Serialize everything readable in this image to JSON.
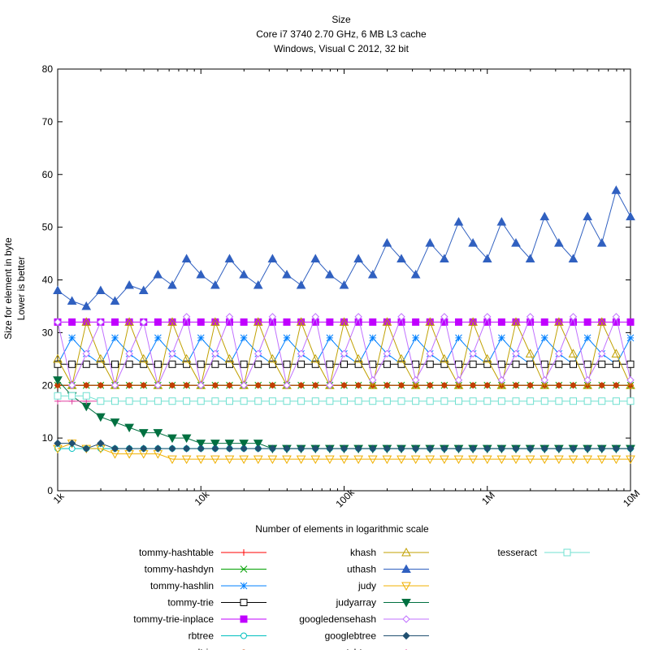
{
  "chart_data": {
    "type": "line",
    "title_lines": [
      "Size",
      "Core i7 3740 2.70 GHz, 6 MB L3 cache",
      "Windows, Visual C 2012, 32 bit"
    ],
    "xlabel": "Number of elements in logarithmic scale",
    "ylabel_lines": [
      "Size for element in byte",
      "Lower is better"
    ],
    "x_scale": "log",
    "xlim": [
      1000,
      10000000
    ],
    "ylim": [
      0,
      80
    ],
    "x_ticks": [
      {
        "value": 1000,
        "label": "1k"
      },
      {
        "value": 10000,
        "label": "10k"
      },
      {
        "value": 100000,
        "label": "100k"
      },
      {
        "value": 1000000,
        "label": "1M"
      },
      {
        "value": 10000000,
        "label": "10M"
      }
    ],
    "y_ticks": [
      0,
      10,
      20,
      30,
      40,
      50,
      60,
      70,
      80
    ],
    "grid": false,
    "legend_placement": "bottom",
    "x": [
      1000,
      1259,
      1585,
      1995,
      2512,
      3162,
      3981,
      5012,
      6310,
      7943,
      10000,
      12589,
      15849,
      19953,
      25119,
      31623,
      39811,
      50119,
      63096,
      79433,
      100000,
      125893,
      158489,
      199526,
      251189,
      316228,
      398107,
      501187,
      630957,
      794328,
      1000000,
      1258925,
      1584893,
      1995262,
      2511886,
      3162278,
      3981072,
      5011872,
      6309573,
      7943282,
      10000000
    ],
    "series": [
      {
        "name": "tommy-hashtable",
        "color": "#ff0000",
        "marker": "plus",
        "values": [
          20,
          20,
          20,
          20,
          20,
          20,
          20,
          20,
          20,
          20,
          20,
          20,
          20,
          20,
          20,
          20,
          20,
          20,
          20,
          20,
          20,
          20,
          20,
          20,
          20,
          20,
          20,
          20,
          20,
          20,
          20,
          20,
          20,
          20,
          20,
          20,
          20,
          20,
          20,
          20,
          20
        ]
      },
      {
        "name": "tommy-hashdyn",
        "color": "#00a000",
        "marker": "cross",
        "values": [
          20,
          20,
          20,
          20,
          20,
          20,
          20,
          20,
          20,
          20,
          20,
          20,
          20,
          20,
          20,
          20,
          20,
          20,
          20,
          20,
          20,
          20,
          20,
          20,
          20,
          20,
          20,
          20,
          20,
          20,
          20,
          20,
          20,
          20,
          20,
          20,
          20,
          20,
          20,
          20,
          20
        ]
      },
      {
        "name": "tommy-hashlin",
        "color": "#0080ff",
        "marker": "star",
        "values": [
          24,
          29,
          26,
          24,
          29,
          26,
          24,
          29,
          26,
          24,
          29,
          26,
          24,
          29,
          26,
          24,
          29,
          26,
          24,
          29,
          26,
          24,
          29,
          26,
          24,
          29,
          26,
          24,
          29,
          26,
          24,
          29,
          26,
          24,
          29,
          26,
          24,
          29,
          26,
          24,
          29
        ]
      },
      {
        "name": "tommy-trie",
        "color": "#000000",
        "marker": "square-open",
        "values": [
          24,
          24,
          24,
          24,
          24,
          24,
          24,
          24,
          24,
          24,
          24,
          24,
          24,
          24,
          24,
          24,
          24,
          24,
          24,
          24,
          24,
          24,
          24,
          24,
          24,
          24,
          24,
          24,
          24,
          24,
          24,
          24,
          24,
          24,
          24,
          24,
          24,
          24,
          24,
          24,
          24
        ]
      },
      {
        "name": "tommy-trie-inplace",
        "color": "#c000ff",
        "marker": "square-filled",
        "values": [
          32,
          32,
          32,
          32,
          32,
          32,
          32,
          32,
          32,
          32,
          32,
          32,
          32,
          32,
          32,
          32,
          32,
          32,
          32,
          32,
          32,
          32,
          32,
          32,
          32,
          32,
          32,
          32,
          32,
          32,
          32,
          32,
          32,
          32,
          32,
          32,
          32,
          32,
          32,
          32,
          32
        ]
      },
      {
        "name": "rbtree",
        "color": "#00c0c0",
        "marker": "circle-open",
        "values": [
          8,
          8,
          8,
          8,
          8,
          8,
          8,
          8,
          8,
          8,
          8,
          8,
          8,
          8,
          8,
          8,
          8,
          8,
          8,
          8,
          8,
          8,
          8,
          8,
          8,
          8,
          8,
          8,
          8,
          8,
          8,
          8,
          8,
          8,
          8,
          8,
          8,
          8,
          8,
          8,
          8
        ]
      },
      {
        "name": "nedtrie",
        "color": "#c04000",
        "marker": "star-filled",
        "values": [
          20,
          20,
          20,
          20,
          20,
          20,
          20,
          20,
          20,
          20,
          20,
          20,
          20,
          20,
          20,
          20,
          20,
          20,
          20,
          20,
          20,
          20,
          20,
          20,
          20,
          20,
          20,
          20,
          20,
          20,
          20,
          20,
          20,
          20,
          20,
          20,
          20,
          20,
          20,
          20,
          20
        ]
      },
      {
        "name": "khash",
        "color": "#c0a000",
        "marker": "triangle-up-open",
        "values": [
          25,
          20,
          32,
          25,
          20,
          32,
          25,
          20,
          32,
          25,
          20,
          32,
          25,
          20,
          32,
          25,
          20,
          32,
          25,
          20,
          32,
          25,
          20,
          32,
          25,
          20,
          32,
          25,
          20,
          32,
          25,
          20,
          32,
          26,
          20,
          32,
          26,
          20,
          32,
          26,
          20
        ]
      },
      {
        "name": "uthash",
        "color": "#3060c0",
        "marker": "triangle-up-filled",
        "values": [
          38,
          36,
          35,
          38,
          36,
          39,
          38,
          41,
          39,
          44,
          41,
          39,
          44,
          41,
          39,
          44,
          41,
          39,
          44,
          41,
          39,
          44,
          41,
          47,
          44,
          41,
          47,
          44,
          51,
          47,
          44,
          51,
          47,
          44,
          52,
          47,
          44,
          52,
          47,
          57,
          52
        ]
      },
      {
        "name": "judy",
        "color": "#f0b000",
        "marker": "triangle-down-open",
        "values": [
          8,
          9,
          8,
          8,
          7,
          7,
          7,
          7,
          6,
          6,
          6,
          6,
          6,
          6,
          6,
          6,
          6,
          6,
          6,
          6,
          6,
          6,
          6,
          6,
          6,
          6,
          6,
          6,
          6,
          6,
          6,
          6,
          6,
          6,
          6,
          6,
          6,
          6,
          6,
          6,
          6
        ]
      },
      {
        "name": "judyarray",
        "color": "#007040",
        "marker": "triangle-down-filled",
        "values": [
          21,
          18,
          16,
          14,
          13,
          12,
          11,
          11,
          10,
          10,
          9,
          9,
          9,
          9,
          9,
          8,
          8,
          8,
          8,
          8,
          8,
          8,
          8,
          8,
          8,
          8,
          8,
          8,
          8,
          8,
          8,
          8,
          8,
          8,
          8,
          8,
          8,
          8,
          8,
          8,
          8
        ]
      },
      {
        "name": "googledensehash",
        "color": "#c070ff",
        "marker": "diamond-open",
        "values": [
          32,
          20,
          26,
          32,
          20,
          26,
          32,
          20,
          26,
          33,
          20,
          26,
          33,
          20,
          26,
          33,
          20,
          26,
          33,
          20,
          26,
          33,
          21,
          26,
          33,
          21,
          26,
          33,
          21,
          26,
          33,
          21,
          26,
          33,
          21,
          26,
          33,
          21,
          26,
          33,
          21
        ]
      },
      {
        "name": "googlebtree",
        "color": "#205070",
        "marker": "diamond-filled",
        "values": [
          9,
          9,
          8,
          9,
          8,
          8,
          8,
          8,
          8,
          8,
          8,
          8,
          8,
          8,
          8,
          8,
          8,
          8,
          8,
          8,
          8,
          8,
          8,
          8,
          8,
          8,
          8,
          8,
          8,
          8,
          8,
          8,
          8,
          8,
          8,
          8,
          8,
          8,
          8,
          8,
          8
        ]
      },
      {
        "name": "stxbtree",
        "color": "#e040a0",
        "marker": "plus",
        "values": [
          17,
          17,
          17,
          17,
          null,
          null,
          null,
          null,
          null,
          null,
          null,
          null,
          null,
          null,
          null,
          null,
          null,
          null,
          null,
          null,
          null,
          null,
          null,
          null,
          null,
          null,
          null,
          null,
          null,
          null,
          null,
          null,
          null,
          null,
          null,
          null,
          null,
          null,
          null,
          null,
          null
        ]
      },
      {
        "name": "tesseract",
        "color": "#70e0d0",
        "marker": "square-open",
        "values": [
          18,
          18,
          18,
          17,
          17,
          17,
          17,
          17,
          17,
          17,
          17,
          17,
          17,
          17,
          17,
          17,
          17,
          17,
          17,
          17,
          17,
          17,
          17,
          17,
          17,
          17,
          17,
          17,
          17,
          17,
          17,
          17,
          17,
          17,
          17,
          17,
          17,
          17,
          17,
          17,
          17
        ]
      }
    ]
  }
}
